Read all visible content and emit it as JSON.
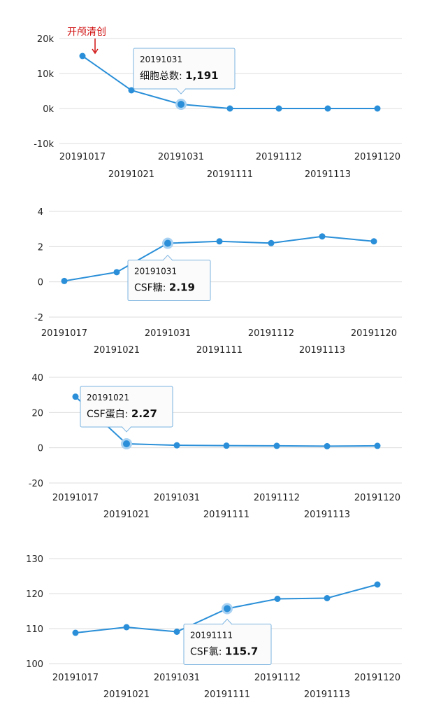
{
  "chart_data": [
    {
      "type": "line",
      "categories": [
        "20191017",
        "20191021",
        "20191031",
        "20191111",
        "20191112",
        "20191113",
        "20191120"
      ],
      "series": [
        {
          "values": [
            15000,
            5200,
            1191,
            0,
            0,
            0,
            0
          ]
        }
      ],
      "yticks": [
        "20k",
        "10k",
        "0k",
        "-10k"
      ],
      "ylim": [
        -10000,
        20000
      ],
      "ytick_values": [
        20000,
        10000,
        0,
        -10000
      ],
      "tooltip": {
        "index": 2,
        "date": "20191031",
        "label": "细胞总数:",
        "value": "1,191"
      },
      "annotation": {
        "text": "开颅清创",
        "index": 0
      },
      "grid": true
    },
    {
      "type": "line",
      "categories": [
        "20191017",
        "20191021",
        "20191031",
        "20191111",
        "20191112",
        "20191113",
        "20191120"
      ],
      "x_extra_point": true,
      "series": [
        {
          "values": [
            0.05,
            0.55,
            2.19,
            2.3,
            2.2,
            2.58,
            2.3
          ]
        }
      ],
      "yticks": [
        "4",
        "2",
        "0",
        "-2"
      ],
      "ylim": [
        -2,
        4
      ],
      "ytick_values": [
        4,
        2,
        0,
        -2
      ],
      "tooltip": {
        "index": 2,
        "date": "20191031",
        "label": "CSF糖:",
        "value": "2.19"
      },
      "grid": true
    },
    {
      "type": "line",
      "categories": [
        "20191017",
        "20191021",
        "20191031",
        "20191111",
        "20191112",
        "20191113",
        "20191120"
      ],
      "series": [
        {
          "values": [
            29,
            2.27,
            1.4,
            1.2,
            1.1,
            0.9,
            1.1
          ]
        }
      ],
      "yticks": [
        "40",
        "20",
        "0",
        "-20"
      ],
      "ylim": [
        -20,
        40
      ],
      "ytick_values": [
        40,
        20,
        0,
        -20
      ],
      "tooltip": {
        "index": 1,
        "date": "20191021",
        "label": "CSF蛋白:",
        "value": "2.27"
      },
      "grid": true
    },
    {
      "type": "line",
      "categories": [
        "20191017",
        "20191021",
        "20191031",
        "20191111",
        "20191112",
        "20191113",
        "20191120"
      ],
      "series": [
        {
          "values": [
            108.8,
            110.4,
            109.1,
            115.7,
            118.5,
            118.7,
            122.6
          ]
        }
      ],
      "yticks": [
        "130",
        "120",
        "110",
        "100"
      ],
      "ylim": [
        100,
        130
      ],
      "ytick_values": [
        130,
        120,
        110,
        100
      ],
      "tooltip": {
        "index": 3,
        "date": "20191111",
        "label": "CSF氯:",
        "value": "115.7"
      },
      "grid": true
    }
  ]
}
